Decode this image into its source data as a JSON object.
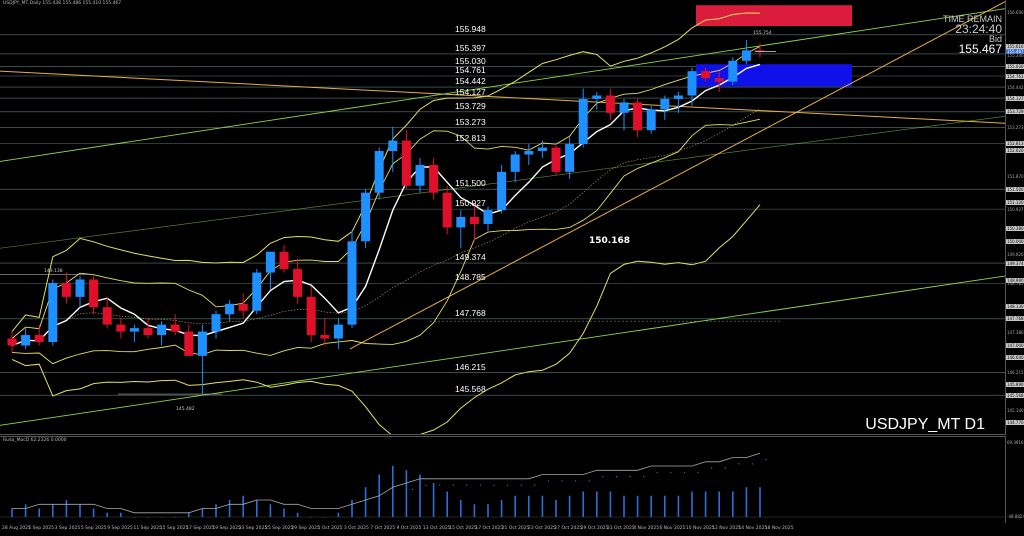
{
  "window": {
    "header_info": "USDJPY_MT,Daily  155.438 155.486 155.410 155.467",
    "osc_info": "Ruda_MacD 62.2326  0.0000",
    "symbol_label": "USDJPY_MT D1",
    "time_remain_label": "TIME REMAIN",
    "time_remain_value": "23:24:40",
    "bid_label": "Bid",
    "bid_value": "155.467"
  },
  "levels": [
    {
      "label": "155.948"
    },
    {
      "label": "155.397"
    },
    {
      "label": "155.030"
    },
    {
      "label": "154.761"
    },
    {
      "label": "154.442"
    },
    {
      "label": "154.127"
    },
    {
      "label": "153.729"
    },
    {
      "label": "153.273"
    },
    {
      "label": "152.813"
    },
    {
      "label": "151.500"
    },
    {
      "label": "150.927"
    },
    {
      "label": "149.374"
    },
    {
      "label": "148.785"
    },
    {
      "label": "147.768"
    },
    {
      "label": "146.215"
    },
    {
      "label": "145.568"
    }
  ],
  "tags": {
    "low_tag": "150.168",
    "left_high": "149.138",
    "left_low": "145.482",
    "top_box_tag": "155.754"
  },
  "price_scale": [
    "156.600",
    "155.610",
    "155.467",
    "155.340",
    "155.030",
    "154.761",
    "154.442",
    "154.127",
    "153.729",
    "153.273",
    "152.813",
    "152.620",
    "151.870",
    "151.500",
    "151.120",
    "150.927",
    "150.380",
    "150.000",
    "149.620",
    "149.374",
    "148.880",
    "148.785",
    "148.130",
    "147.768",
    "147.380",
    "147.000",
    "146.640",
    "146.215",
    "145.890",
    "145.568",
    "145.140",
    "144.770"
  ],
  "osc_scale": [
    "69.3916",
    "-48.8824"
  ],
  "time_axis": [
    "28 Aug 2025",
    "1 Sep 2025",
    "3 Sep 2025",
    "5 Sep 2025",
    "9 Sep 2025",
    "11 Sep 2025",
    "15 Sep 2025",
    "17 Sep 2025",
    "19 Sep 2025",
    "23 Sep 2025",
    "25 Sep 2025",
    "29 Sep 2025",
    "1 Oct 2025",
    "3 Oct 2025",
    "7 Oct 2025",
    "9 Oct 2025",
    "13 Oct 2025",
    "15 Oct 2025",
    "17 Oct 2025",
    "21 Oct 2025",
    "23 Oct 2025",
    "27 Oct 2025",
    "29 Oct 2025",
    "31 Oct 2025",
    "4 Nov 2025",
    "6 Nov 2025",
    "10 Nov 2025",
    "12 Nov 2025",
    "14 Nov 2025",
    "18 Nov 2025"
  ],
  "colors": {
    "bull": "#1e90ff",
    "bear": "#e0102a",
    "band": "#e6e060",
    "ma": "#ffffff",
    "trend": "#8fd64a",
    "orange": "#e8b040",
    "level": "#8fd0c8",
    "box_red": "#dc1c3c",
    "box_blue": "#1010e8"
  },
  "candles": [
    [
      147.2,
      147.4,
      146.8,
      147.0
    ],
    [
      147.0,
      147.5,
      146.9,
      147.3
    ],
    [
      147.3,
      147.6,
      147.0,
      147.1
    ],
    [
      147.1,
      148.9,
      147.0,
      148.8
    ],
    [
      148.8,
      149.1,
      148.2,
      148.4
    ],
    [
      148.4,
      149.0,
      148.1,
      148.9
    ],
    [
      148.9,
      149.0,
      147.9,
      148.1
    ],
    [
      148.1,
      148.4,
      147.5,
      147.6
    ],
    [
      147.6,
      147.8,
      147.2,
      147.4
    ],
    [
      147.4,
      147.6,
      147.1,
      147.5
    ],
    [
      147.5,
      147.8,
      147.2,
      147.3
    ],
    [
      147.3,
      147.7,
      147.0,
      147.6
    ],
    [
      147.6,
      147.9,
      147.3,
      147.4
    ],
    [
      147.4,
      147.6,
      146.7,
      146.7
    ],
    [
      146.7,
      147.6,
      145.6,
      147.4
    ],
    [
      147.4,
      148.0,
      147.2,
      147.9
    ],
    [
      147.9,
      148.3,
      147.7,
      148.2
    ],
    [
      148.2,
      148.5,
      147.8,
      148.0
    ],
    [
      148.0,
      149.2,
      147.9,
      149.1
    ],
    [
      149.1,
      149.7,
      148.6,
      149.7
    ],
    [
      149.7,
      149.9,
      149.1,
      149.2
    ],
    [
      149.2,
      149.5,
      148.2,
      148.4
    ],
    [
      148.4,
      148.7,
      147.1,
      147.3
    ],
    [
      147.3,
      147.8,
      147.0,
      147.2
    ],
    [
      147.2,
      147.8,
      146.9,
      147.6
    ],
    [
      147.6,
      150.3,
      147.5,
      150.0
    ],
    [
      150.0,
      151.5,
      149.8,
      151.4
    ],
    [
      151.4,
      152.7,
      151.2,
      152.6
    ],
    [
      152.6,
      153.3,
      152.0,
      152.9
    ],
    [
      152.9,
      153.2,
      151.5,
      151.6
    ],
    [
      151.6,
      152.4,
      151.4,
      152.2
    ],
    [
      152.2,
      152.4,
      151.2,
      151.4
    ],
    [
      151.4,
      151.6,
      150.2,
      150.4
    ],
    [
      150.4,
      150.9,
      149.8,
      150.7
    ],
    [
      150.7,
      151.1,
      150.0,
      150.5
    ],
    [
      150.5,
      151.0,
      150.3,
      150.9
    ],
    [
      150.9,
      152.2,
      150.8,
      152.0
    ],
    [
      152.0,
      152.6,
      151.7,
      152.5
    ],
    [
      152.5,
      152.8,
      152.2,
      152.6
    ],
    [
      152.6,
      152.9,
      152.4,
      152.7
    ],
    [
      152.7,
      152.8,
      151.9,
      152.0
    ],
    [
      152.0,
      153.0,
      151.8,
      152.8
    ],
    [
      152.8,
      154.4,
      152.7,
      154.1
    ],
    [
      154.1,
      154.3,
      153.8,
      154.2
    ],
    [
      154.2,
      154.4,
      153.5,
      153.7
    ],
    [
      153.7,
      154.1,
      153.2,
      154.0
    ],
    [
      154.0,
      154.1,
      153.0,
      153.2
    ],
    [
      153.2,
      153.9,
      153.1,
      153.8
    ],
    [
      153.8,
      154.2,
      153.5,
      154.1
    ],
    [
      154.1,
      154.3,
      153.7,
      154.2
    ],
    [
      154.2,
      155.0,
      153.9,
      154.9
    ],
    [
      154.9,
      155.0,
      154.6,
      154.7
    ],
    [
      154.7,
      154.9,
      154.3,
      154.6
    ],
    [
      154.6,
      155.3,
      154.5,
      155.2
    ],
    [
      155.2,
      155.8,
      155.1,
      155.5
    ],
    [
      155.5,
      155.7,
      155.3,
      155.47
    ]
  ],
  "histogram": [
    2,
    3,
    2,
    3,
    4,
    3,
    2,
    1,
    1,
    0,
    0,
    0,
    0,
    1,
    2,
    3,
    4,
    5,
    4,
    3,
    2,
    1,
    0,
    0,
    1,
    4,
    7,
    10,
    12,
    11,
    10,
    8,
    6,
    4,
    3,
    3,
    4,
    5,
    5,
    5,
    4,
    5,
    6,
    6,
    6,
    5,
    5,
    5,
    5,
    5,
    6,
    6,
    6,
    6,
    7,
    7
  ],
  "osc_signal": [
    2,
    2,
    3,
    3,
    3,
    3,
    3,
    2,
    2,
    1,
    1,
    1,
    1,
    1,
    2,
    2,
    3,
    3,
    4,
    4,
    3,
    3,
    2,
    2,
    2,
    3,
    4,
    5,
    7,
    8,
    9,
    9,
    9,
    9,
    9,
    9,
    9,
    9,
    9,
    10,
    10,
    10,
    10,
    11,
    11,
    11,
    11,
    12,
    12,
    12,
    12,
    13,
    13,
    14,
    14,
    15
  ]
}
